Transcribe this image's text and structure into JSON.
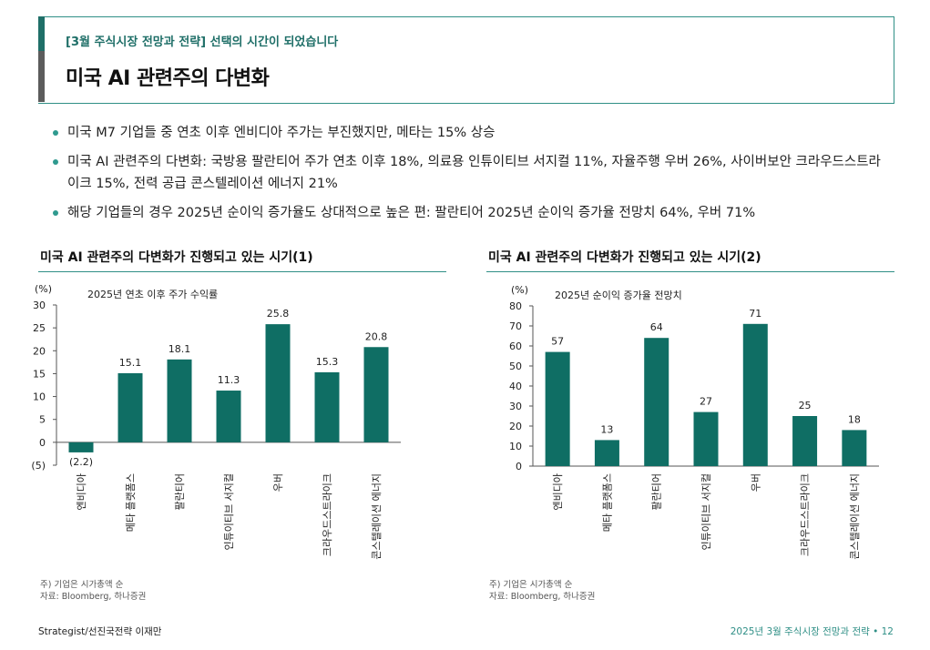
{
  "header": {
    "subtitle": "[3월 주식시장 전망과 전략] 선택의 시간이 되었습니다",
    "title": "미국 AI 관련주의 다변화"
  },
  "bullets": [
    "미국 M7 기업들 중 연초 이후 엔비디아 주가는 부진했지만, 메타는 15% 상승",
    "미국 AI 관련주의 다변화: 국방용 팔란티어 주가 연초 이후 18%, 의료용 인튜이티브 서지컬 11%, 자율주행 우버 26%, 사이버보안 크라우드스트라이크 15%, 전력 공급 콘스텔레이션 에너지 21%",
    "해당 기업들의 경우 2025년 순이익 증가율도 상대적으로 높은 편: 팔란티어 2025년 순이익 증가율 전망치 64%, 우버 71%"
  ],
  "chart_data": [
    {
      "type": "bar",
      "title": "미국 AI 관련주의 다변화가 진행되고 있는 시기(1)",
      "caption": "2025년 연초 이후 주가 수익률",
      "unit": "(%)",
      "categories": [
        "엔비디아",
        "메타 플랫폼스",
        "팔란티어",
        "인튜이티브 서지컬",
        "우버",
        "크라우드스트라이크",
        "콘스텔레이션 에너지"
      ],
      "values": [
        -2.2,
        15.1,
        18.1,
        11.3,
        25.8,
        15.3,
        20.8
      ],
      "value_labels": [
        "(2.2)",
        "15.1",
        "18.1",
        "11.3",
        "25.8",
        "15.3",
        "20.8"
      ],
      "ylim": [
        -5,
        30
      ],
      "yticks": [
        -5,
        0,
        5,
        10,
        15,
        20,
        25,
        30
      ],
      "ytick_labels": [
        "(5)",
        "0",
        "5",
        "10",
        "15",
        "20",
        "25",
        "30"
      ],
      "grid": false,
      "bar_color": "#0f6e64"
    },
    {
      "type": "bar",
      "title": "미국 AI 관련주의 다변화가 진행되고 있는 시기(2)",
      "caption": "2025년 순이익 증가율 전망치",
      "unit": "(%)",
      "categories": [
        "엔비디아",
        "메타 플랫폼스",
        "팔란티어",
        "인튜이티브 서지컬",
        "우버",
        "크라우드스트라이크",
        "콘스텔레이션 에너지"
      ],
      "values": [
        57,
        13,
        64,
        27,
        71,
        25,
        18
      ],
      "value_labels": [
        "57",
        "13",
        "64",
        "27",
        "71",
        "25",
        "18"
      ],
      "ylim": [
        0,
        80
      ],
      "yticks": [
        0,
        10,
        20,
        30,
        40,
        50,
        60,
        70,
        80
      ],
      "ytick_labels": [
        "0",
        "10",
        "20",
        "30",
        "40",
        "50",
        "60",
        "70",
        "80"
      ],
      "grid": false,
      "bar_color": "#0f6e64"
    }
  ],
  "notes": [
    {
      "line1": "주) 기업은 시가총액 순",
      "line2": "자료: Bloomberg, 하나증권"
    },
    {
      "line1": "주) 기업은 시가총액 순",
      "line2": "자료: Bloomberg, 하나증권"
    }
  ],
  "footer": {
    "left": "Strategist/선진국전략 이재만",
    "right": "2025년 3월 주식시장 전망과 전략 • 12"
  }
}
